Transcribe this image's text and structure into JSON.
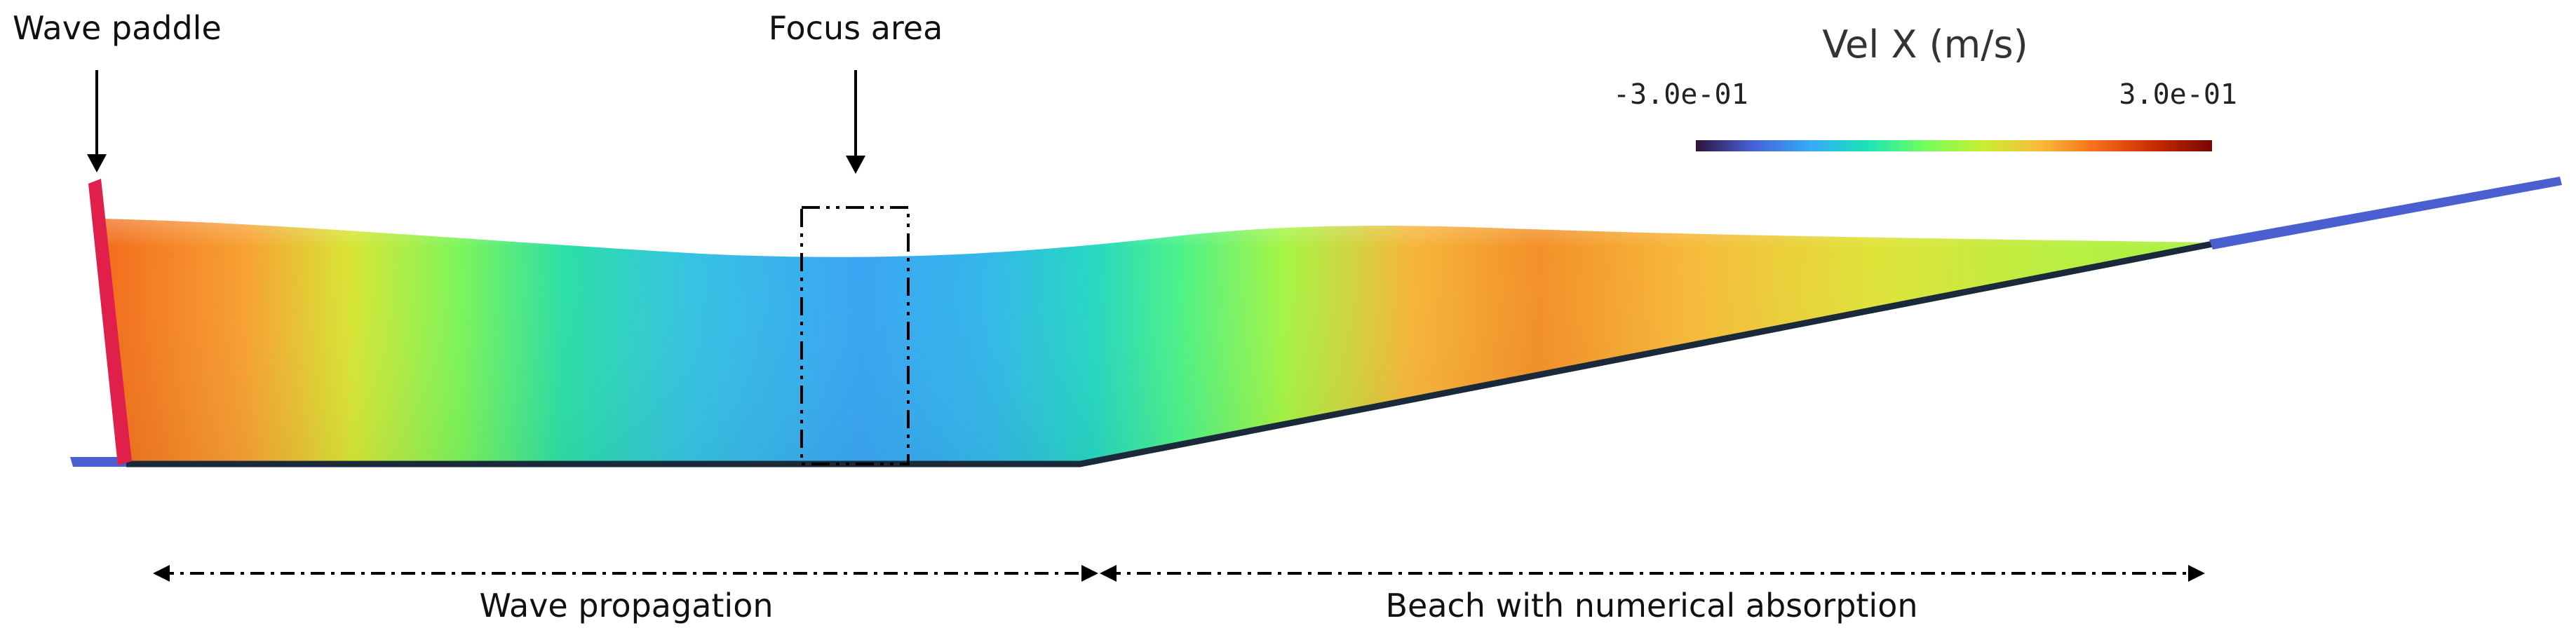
{
  "annotations": {
    "wave_paddle": "Wave paddle",
    "focus_area": "Focus area",
    "wave_propagation": "Wave propagation",
    "beach": "Beach with numerical absorption"
  },
  "colorbar": {
    "title": "Vel X (m/s)",
    "min_label": "-3.0e-01",
    "max_label": "3.0e-01",
    "min_value": -0.3,
    "max_value": 0.3,
    "colormap": "turbo",
    "colors": [
      "#30123b",
      "#4662d7",
      "#36aaf9",
      "#1ae4b6",
      "#72fe5e",
      "#c8ef34",
      "#faba39",
      "#f66b19",
      "#ca2a04",
      "#7a0403"
    ]
  },
  "colors": {
    "paddle": "#e0204a",
    "floor": "#1a2a3a",
    "beach_extension": "#4a5fd0",
    "arrow": "#000000"
  }
}
